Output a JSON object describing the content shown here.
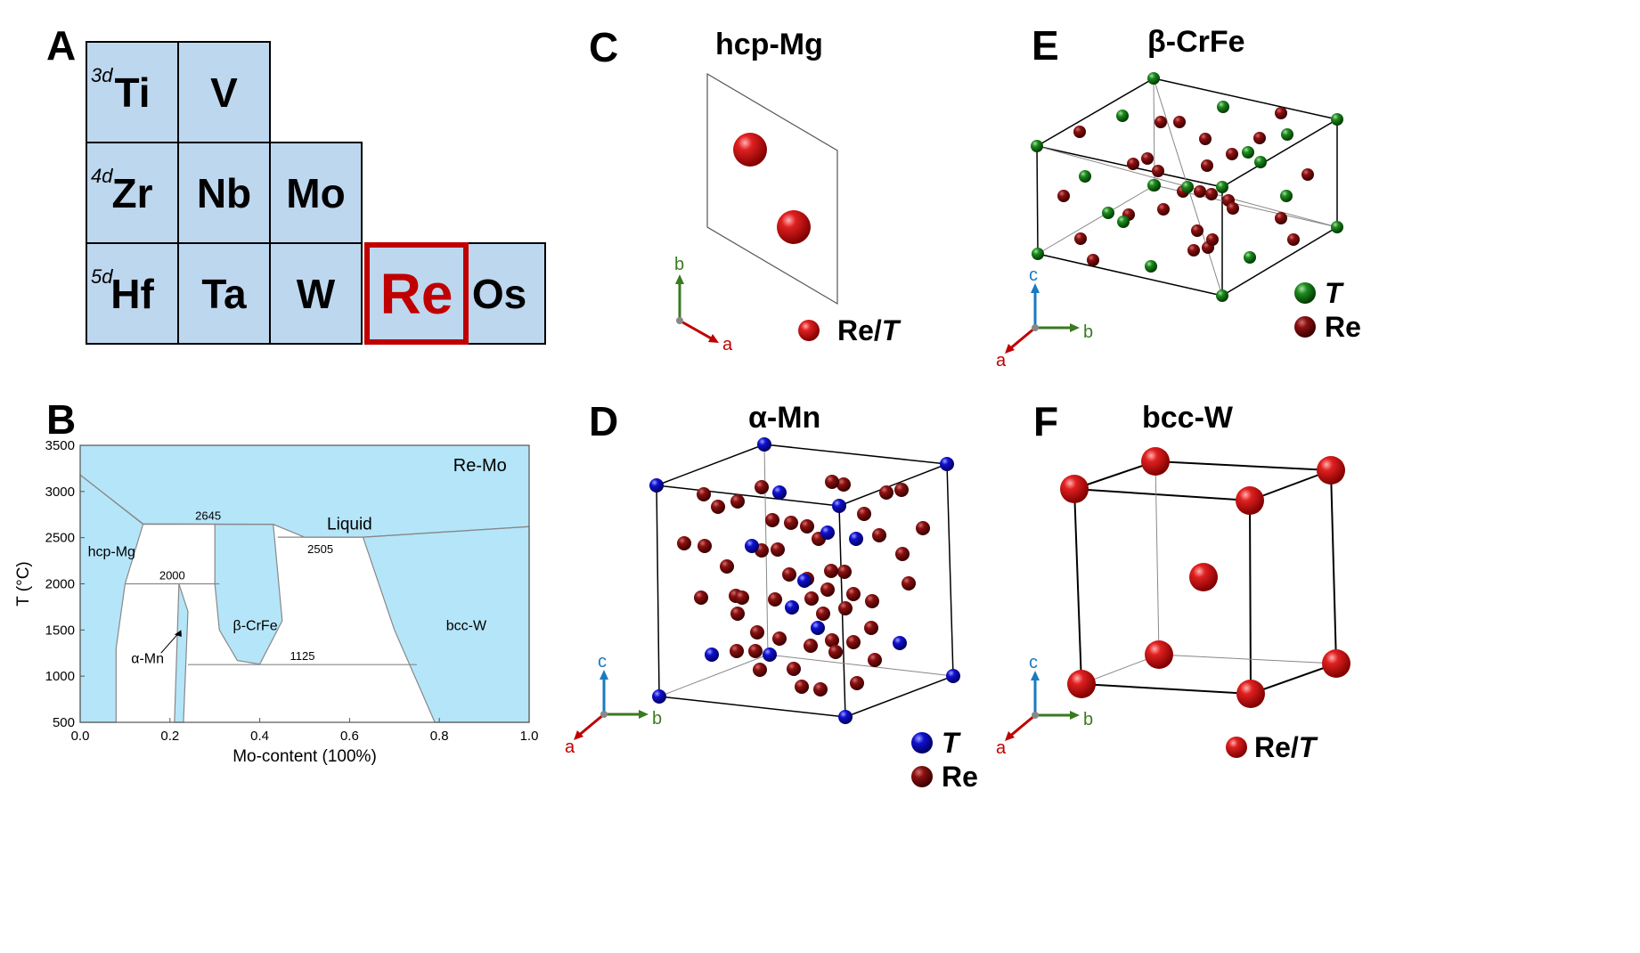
{
  "panels": {
    "A": {
      "letter": "A",
      "rows": [
        {
          "period": "3d",
          "elements": [
            "Ti",
            "V"
          ]
        },
        {
          "period": "4d",
          "elements": [
            "Zr",
            "Nb",
            "Mo"
          ]
        },
        {
          "period": "5d",
          "elements": [
            "Hf",
            "Ta",
            "W",
            "Re",
            "Os"
          ]
        }
      ],
      "highlighted": "Re",
      "colors": {
        "cell": "#bdd7ee",
        "highlight": "#c00000"
      }
    },
    "B": {
      "letter": "B"
    },
    "C": {
      "letter": "C",
      "title": "hcp-Mg",
      "legend": [
        {
          "label": "Re/",
          "italic": "T",
          "color": "#cc1111"
        }
      ],
      "axes": {
        "a": "a",
        "b": "b"
      }
    },
    "D": {
      "letter": "D",
      "title": "α-Mn",
      "legend": [
        {
          "label": "",
          "italic": "T",
          "color": "#1a1adb"
        },
        {
          "label": "Re",
          "italic": "",
          "color": "#7a0d0d"
        }
      ],
      "axes": {
        "a": "a",
        "b": "b",
        "c": "c"
      }
    },
    "E": {
      "letter": "E",
      "title": "β-CrFe",
      "legend": [
        {
          "label": "",
          "italic": "T",
          "color": "#1e7a1e"
        },
        {
          "label": "Re",
          "italic": "",
          "color": "#7a0d0d"
        }
      ],
      "axes": {
        "a": "a",
        "b": "b",
        "c": "c"
      }
    },
    "F": {
      "letter": "F",
      "title": "bcc-W",
      "legend": [
        {
          "label": "Re/",
          "italic": "T",
          "color": "#cc1111"
        }
      ],
      "axes": {
        "a": "a",
        "b": "b",
        "c": "c"
      }
    }
  },
  "chart_data": {
    "type": "phase-diagram",
    "title": "Re-Mo",
    "xlabel": "Mo-content (100%)",
    "ylabel": "T (°C)",
    "xlim": [
      0.0,
      1.0
    ],
    "ylim": [
      500,
      3500
    ],
    "xticks": [
      "0.0",
      "0.2",
      "0.4",
      "0.6",
      "0.8",
      "1.0"
    ],
    "yticks": [
      "500",
      "1000",
      "1500",
      "2000",
      "2500",
      "3000",
      "3500"
    ],
    "fill_color": "#b5e5f8",
    "region_labels": [
      {
        "text": "Liquid",
        "x": 0.6,
        "y": 2590
      },
      {
        "text": "hcp-Mg",
        "x": 0.07,
        "y": 2300
      },
      {
        "text": "β-CrFe",
        "x": 0.39,
        "y": 1500
      },
      {
        "text": "bcc-W",
        "x": 0.86,
        "y": 1500
      },
      {
        "text": "α-Mn",
        "x": 0.15,
        "y": 1140
      }
    ],
    "isotherms": [
      {
        "label": "2645",
        "y": 2645,
        "x_from": 0.14,
        "x_to": 0.43
      },
      {
        "label": "2505",
        "y": 2505,
        "x_from": 0.44,
        "x_to": 0.63
      },
      {
        "label": "2000",
        "y": 2000,
        "x_from": 0.1,
        "x_to": 0.31
      },
      {
        "label": "1125",
        "y": 1125,
        "x_from": 0.24,
        "x_to": 0.75
      }
    ],
    "liquidus": [
      [
        0.0,
        3180
      ],
      [
        0.14,
        2650
      ],
      [
        0.43,
        2645
      ],
      [
        0.5,
        2505
      ],
      [
        0.63,
        2505
      ],
      [
        1.0,
        2620
      ]
    ],
    "phase_regions": [
      {
        "name": "hcp-Mg",
        "points": [
          [
            0.0,
            3180
          ],
          [
            0.14,
            2645
          ],
          [
            0.1,
            2000
          ],
          [
            0.08,
            1300
          ],
          [
            0.08,
            500
          ],
          [
            0.0,
            500
          ]
        ]
      },
      {
        "name": "α-Mn",
        "points": [
          [
            0.21,
            500
          ],
          [
            0.22,
            2000
          ],
          [
            0.24,
            1700
          ],
          [
            0.23,
            500
          ]
        ]
      },
      {
        "name": "β-CrFe",
        "points": [
          [
            0.3,
            2645
          ],
          [
            0.43,
            2645
          ],
          [
            0.45,
            1600
          ],
          [
            0.4,
            1130
          ],
          [
            0.35,
            1170
          ],
          [
            0.31,
            1500
          ],
          [
            0.3,
            2000
          ]
        ]
      },
      {
        "name": "bcc-W",
        "points": [
          [
            0.63,
            2505
          ],
          [
            1.0,
            2620
          ],
          [
            1.0,
            500
          ],
          [
            0.79,
            500
          ],
          [
            0.7,
            1500
          ]
        ]
      }
    ]
  }
}
